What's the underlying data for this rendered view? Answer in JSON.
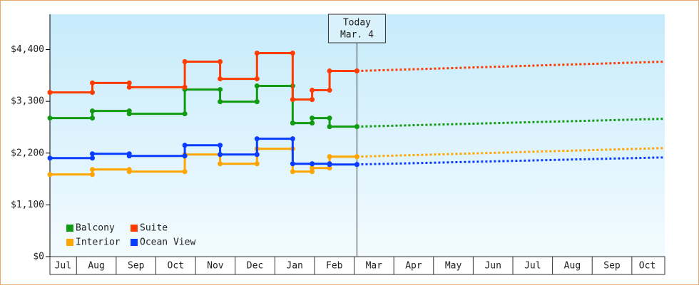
{
  "chart_data": {
    "type": "step-line",
    "x": [
      0.33,
      1.4,
      2.33,
      3.73,
      4.62,
      5.55,
      6.45,
      6.94,
      7.38,
      8.07
    ],
    "forecast_x": [
      8.07,
      15.83
    ],
    "series": [
      {
        "name": "Balcony",
        "color": "#129a12",
        "values": [
          2944,
          3096,
          3035,
          3551,
          3293,
          3627,
          2838,
          2944,
          2762,
          2762
        ],
        "forecast": [
          2762,
          2929
        ]
      },
      {
        "name": "Suite",
        "color": "#ff3c00",
        "values": [
          3490,
          3690,
          3600,
          4143,
          3778,
          4325,
          3338,
          3536,
          3945,
          3945
        ],
        "forecast": [
          3945,
          4143
        ]
      },
      {
        "name": "Interior",
        "color": "#ffa500",
        "values": [
          1745,
          1851,
          1806,
          2170,
          1973,
          2291,
          1806,
          1882,
          2124,
          2124
        ],
        "forecast": [
          2124,
          2307
        ]
      },
      {
        "name": "Ocean View",
        "color": "#0a3cff",
        "values": [
          2094,
          2185,
          2140,
          2367,
          2170,
          2504,
          1973,
          1973,
          1958,
          1958
        ],
        "forecast": [
          1958,
          2109
        ]
      }
    ],
    "xlim": [
      0.33,
      15.83
    ],
    "xticks": [
      {
        "value": 0.66,
        "label": "Jul"
      },
      {
        "value": 1.5,
        "label": "Aug"
      },
      {
        "value": 2.5,
        "label": "Sep"
      },
      {
        "value": 3.5,
        "label": "Oct"
      },
      {
        "value": 4.5,
        "label": "Nov"
      },
      {
        "value": 5.5,
        "label": "Dec"
      },
      {
        "value": 6.5,
        "label": "Jan"
      },
      {
        "value": 7.5,
        "label": "Feb"
      },
      {
        "value": 8.5,
        "label": "Mar"
      },
      {
        "value": 9.5,
        "label": "Apr"
      },
      {
        "value": 10.5,
        "label": "May"
      },
      {
        "value": 11.5,
        "label": "Jun"
      },
      {
        "value": 12.5,
        "label": "Jul"
      },
      {
        "value": 13.5,
        "label": "Aug"
      },
      {
        "value": 14.5,
        "label": "Sep"
      },
      {
        "value": 15.39,
        "label": "Oct"
      }
    ],
    "ylim": [
      0,
      5150
    ],
    "yticks": [
      {
        "value": 0,
        "label": "$0"
      },
      {
        "value": 1100,
        "label": "$1,100"
      },
      {
        "value": 2200,
        "label": "$2,200"
      },
      {
        "value": 3300,
        "label": "$3,300"
      },
      {
        "value": 4400,
        "label": "$4,400"
      }
    ],
    "today": {
      "x": 8.07,
      "label": [
        "Today",
        "Mar. 4"
      ]
    },
    "legend": "lower left"
  }
}
